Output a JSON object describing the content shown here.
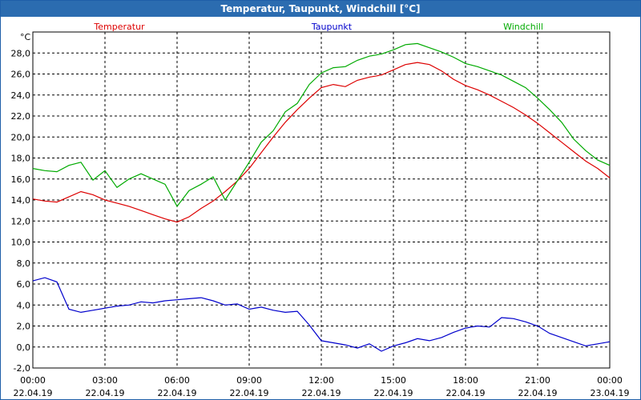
{
  "window": {
    "title": "Temperatur, Taupunkt, Windchill [°C]"
  },
  "chart_data": {
    "type": "line",
    "title": "Temperatur, Taupunkt, Windchill [°C]",
    "ylabel": "°C",
    "ylim": [
      -2,
      30
    ],
    "y_ticks": [
      "-2,0",
      "0,0",
      "2,0",
      "4,0",
      "6,0",
      "8,0",
      "10,0",
      "12,0",
      "14,0",
      "16,0",
      "18,0",
      "20,0",
      "22,0",
      "24,0",
      "26,0",
      "28,0"
    ],
    "x_ticks": [
      {
        "time": "00:00",
        "date": "22.04.19"
      },
      {
        "time": "03:00",
        "date": "22.04.19"
      },
      {
        "time": "06:00",
        "date": "22.04.19"
      },
      {
        "time": "09:00",
        "date": "22.04.19"
      },
      {
        "time": "12:00",
        "date": "22.04.19"
      },
      {
        "time": "15:00",
        "date": "22.04.19"
      },
      {
        "time": "18:00",
        "date": "22.04.19"
      },
      {
        "time": "21:00",
        "date": "22.04.19"
      },
      {
        "time": "00:00",
        "date": "23.04.19"
      }
    ],
    "grid": true,
    "legend": "top",
    "series": [
      {
        "name": "Temperatur",
        "color": "#dd0000",
        "x": [
          "00:00",
          "00:30",
          "01:00",
          "01:30",
          "02:00",
          "02:30",
          "03:00",
          "03:30",
          "04:00",
          "04:30",
          "05:00",
          "05:30",
          "06:00",
          "06:30",
          "07:00",
          "07:30",
          "08:00",
          "08:30",
          "09:00",
          "09:30",
          "10:00",
          "10:30",
          "11:00",
          "11:30",
          "12:00",
          "12:30",
          "13:00",
          "13:30",
          "14:00",
          "14:30",
          "15:00",
          "15:30",
          "16:00",
          "16:30",
          "17:00",
          "17:30",
          "18:00",
          "18:30",
          "19:00",
          "19:30",
          "20:00",
          "20:30",
          "21:00",
          "21:30",
          "22:00",
          "22:30",
          "23:00",
          "23:30",
          "24:00"
        ],
        "values": [
          14.1,
          13.9,
          13.8,
          14.3,
          14.8,
          14.5,
          14.0,
          13.7,
          13.4,
          13.0,
          12.6,
          12.2,
          11.9,
          12.4,
          13.2,
          13.9,
          14.8,
          15.8,
          17.0,
          18.5,
          20.0,
          21.4,
          22.6,
          23.7,
          24.7,
          25.0,
          24.8,
          25.4,
          25.7,
          25.9,
          26.4,
          26.9,
          27.1,
          26.9,
          26.3,
          25.5,
          24.9,
          24.5,
          24.0,
          23.4,
          22.8,
          22.1,
          21.3,
          20.4,
          19.5,
          18.6,
          17.7,
          17.0,
          16.1
        ]
      },
      {
        "name": "Taupunkt",
        "color": "#0000cc",
        "x": [
          "00:00",
          "00:30",
          "01:00",
          "01:30",
          "02:00",
          "02:30",
          "03:00",
          "03:30",
          "04:00",
          "04:30",
          "05:00",
          "05:30",
          "06:00",
          "06:30",
          "07:00",
          "07:30",
          "08:00",
          "08:30",
          "09:00",
          "09:30",
          "10:00",
          "10:30",
          "11:00",
          "11:30",
          "12:00",
          "12:30",
          "13:00",
          "13:30",
          "14:00",
          "14:30",
          "15:00",
          "15:30",
          "16:00",
          "16:30",
          "17:00",
          "17:30",
          "18:00",
          "18:30",
          "19:00",
          "19:30",
          "20:00",
          "20:30",
          "21:00",
          "21:30",
          "22:00",
          "22:30",
          "23:00",
          "23:30",
          "24:00"
        ],
        "values": [
          6.3,
          6.6,
          6.2,
          3.6,
          3.3,
          3.5,
          3.7,
          3.9,
          4.0,
          4.3,
          4.2,
          4.4,
          4.5,
          4.6,
          4.7,
          4.4,
          4.0,
          4.1,
          3.6,
          3.8,
          3.5,
          3.3,
          3.4,
          2.1,
          0.6,
          0.4,
          0.2,
          -0.1,
          0.3,
          -0.4,
          0.1,
          0.4,
          0.8,
          0.6,
          0.9,
          1.4,
          1.8,
          2.0,
          1.9,
          2.8,
          2.7,
          2.4,
          2.0,
          1.3,
          0.9,
          0.5,
          0.1,
          0.3,
          0.5
        ]
      },
      {
        "name": "Windchill",
        "color": "#00aa00",
        "x": [
          "00:00",
          "00:30",
          "01:00",
          "01:30",
          "02:00",
          "02:30",
          "03:00",
          "03:30",
          "04:00",
          "04:30",
          "05:00",
          "05:30",
          "06:00",
          "06:30",
          "07:00",
          "07:30",
          "08:00",
          "08:30",
          "09:00",
          "09:30",
          "10:00",
          "10:30",
          "11:00",
          "11:30",
          "12:00",
          "12:30",
          "13:00",
          "13:30",
          "14:00",
          "14:30",
          "15:00",
          "15:30",
          "16:00",
          "16:30",
          "17:00",
          "17:30",
          "18:00",
          "18:30",
          "19:00",
          "19:30",
          "20:00",
          "20:30",
          "21:00",
          "21:30",
          "22:00",
          "22:30",
          "23:00",
          "23:30",
          "24:00"
        ],
        "values": [
          17.0,
          16.8,
          16.7,
          17.3,
          17.6,
          15.9,
          16.8,
          15.2,
          16.0,
          16.5,
          16.0,
          15.5,
          13.4,
          14.9,
          15.5,
          16.2,
          14.0,
          15.8,
          17.6,
          19.5,
          20.6,
          22.4,
          23.2,
          25.0,
          26.1,
          26.6,
          26.7,
          27.3,
          27.7,
          27.9,
          28.3,
          28.8,
          28.9,
          28.5,
          28.1,
          27.6,
          27.0,
          26.7,
          26.3,
          25.9,
          25.3,
          24.7,
          23.7,
          22.6,
          21.4,
          19.8,
          18.7,
          17.8,
          17.3
        ]
      }
    ]
  }
}
